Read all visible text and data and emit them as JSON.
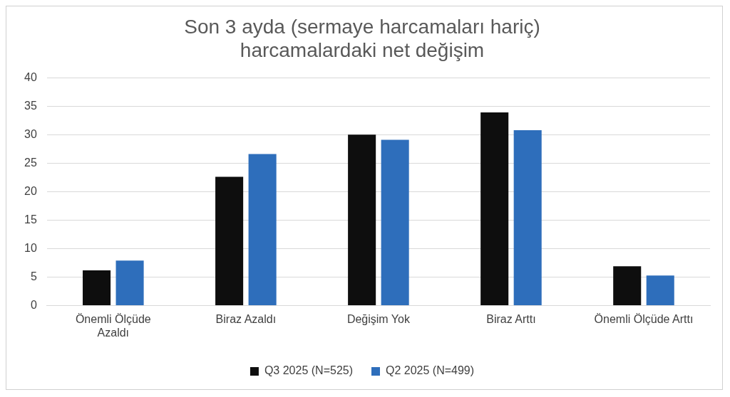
{
  "chart_data": {
    "type": "bar",
    "title": "Son 3 ayda (sermaye harcamaları hariç) harcamalardaki net değişim",
    "categories": [
      "Önemli Ölçüde Azaldı",
      "Biraz Azaldı",
      "Değişim Yok",
      "Biraz Arttı",
      "Önemli Ölçüde Arttı"
    ],
    "series": [
      {
        "name": "Q3 2025 (N=525)",
        "color": "#0e0e0e",
        "values": [
          6.2,
          22.6,
          30.0,
          33.9,
          6.9
        ]
      },
      {
        "name": "Q2 2025 (N=499)",
        "color": "#2e6ebb",
        "values": [
          7.9,
          26.6,
          29.1,
          30.8,
          5.3
        ]
      }
    ],
    "ylim": [
      0,
      40
    ],
    "yticks": [
      0,
      5,
      10,
      15,
      20,
      25,
      30,
      35,
      40
    ],
    "grid": "y",
    "legend": "bottom"
  }
}
